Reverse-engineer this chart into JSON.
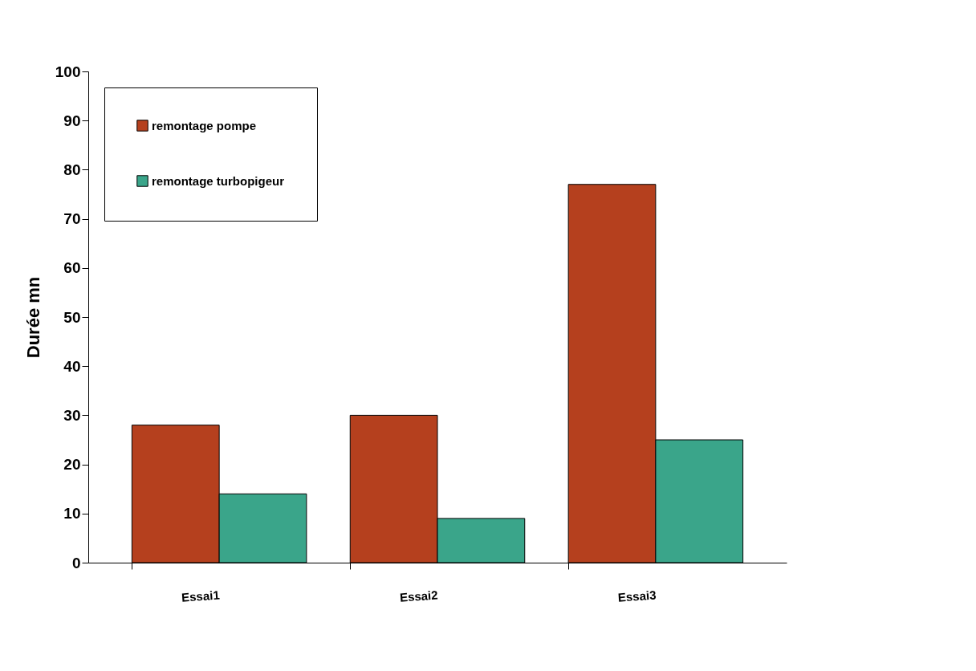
{
  "chart_data": {
    "type": "bar",
    "ylabel": "Durée mn",
    "categories": [
      "Essai1",
      "Essai2",
      "Essai3"
    ],
    "series": [
      {
        "name": "remontage pompe",
        "color": "#b5401e",
        "values": [
          28,
          30,
          77
        ]
      },
      {
        "name": "remontage turbopigeur",
        "color": "#3aa58a",
        "values": [
          14,
          9,
          25
        ]
      }
    ],
    "ylim": [
      0,
      100
    ],
    "yticks": [
      0,
      10,
      20,
      30,
      40,
      50,
      60,
      70,
      80,
      90,
      100
    ],
    "grid": false,
    "legend": "top left"
  }
}
